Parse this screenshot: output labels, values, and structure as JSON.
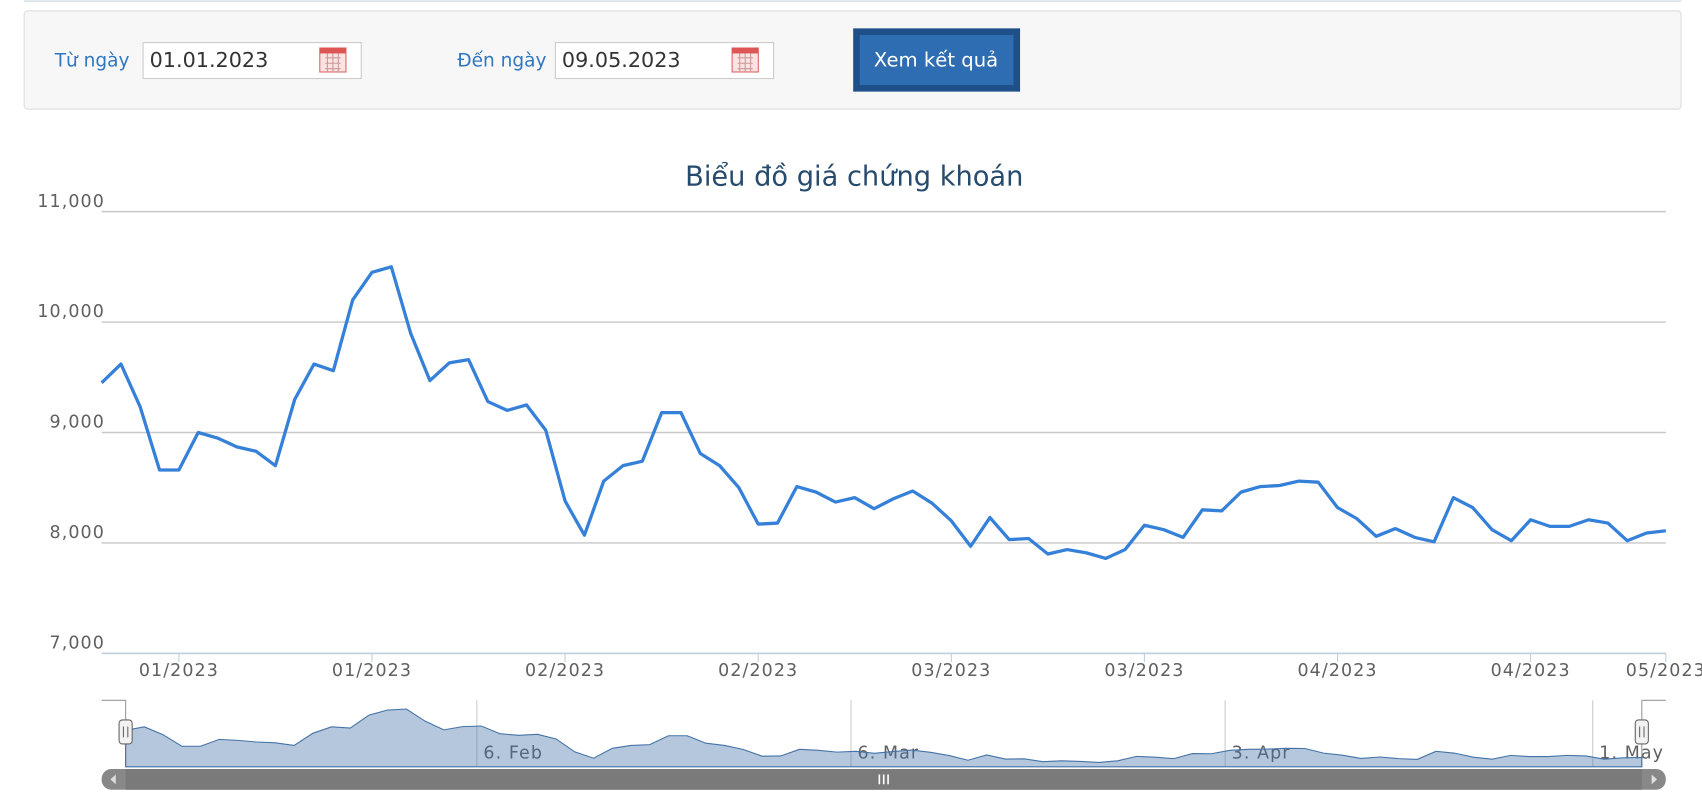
{
  "form": {
    "from_label": "Từ ngày",
    "from_value": "01.01.2023",
    "to_label": "Đến ngày",
    "to_value": "09.05.2023",
    "button": "Xem kết quả"
  },
  "chart_data": {
    "type": "line",
    "title": "Biểu đồ giá chứng khoán",
    "categories": [
      null,
      null,
      null,
      null,
      "01/2023",
      null,
      null,
      null,
      null,
      null,
      null,
      null,
      null,
      null,
      "01/2023",
      null,
      null,
      null,
      null,
      null,
      null,
      null,
      null,
      null,
      "02/2023",
      null,
      null,
      null,
      null,
      null,
      null,
      null,
      null,
      null,
      "02/2023",
      null,
      null,
      null,
      null,
      null,
      null,
      null,
      null,
      null,
      "03/2023",
      null,
      null,
      null,
      null,
      null,
      null,
      null,
      null,
      null,
      "03/2023",
      null,
      null,
      null,
      null,
      null,
      null,
      null,
      null,
      null,
      "04/2023",
      null,
      null,
      null,
      null,
      null,
      null,
      null,
      null,
      null,
      "04/2023",
      null,
      null,
      null,
      null,
      null,
      null,
      "05/2023"
    ],
    "series": [
      {
        "color": "#3580d8",
        "values": [
          9450,
          9620,
          9230,
          8660,
          8660,
          9000,
          8950,
          8870,
          8830,
          8700,
          9300,
          9620,
          9560,
          10200,
          10450,
          10500,
          9900,
          9470,
          9630,
          9660,
          9280,
          9200,
          9250,
          9020,
          8380,
          8070,
          8560,
          8700,
          8740,
          9180,
          9180,
          8810,
          8700,
          8500,
          8170,
          8180,
          8510,
          8460,
          8370,
          8410,
          8310,
          8400,
          8470,
          8360,
          8200,
          7970,
          8230,
          8030,
          8040,
          7900,
          7940,
          7910,
          7860,
          7940,
          8160,
          8120,
          8050,
          8300,
          8290,
          8460,
          8510,
          8520,
          8560,
          8550,
          8320,
          8220,
          8060,
          8130,
          8050,
          8010,
          8410,
          8320,
          8120,
          8020,
          8210,
          8150,
          8150,
          8210,
          8180,
          8020,
          8090,
          8110
        ]
      }
    ],
    "ylim": [
      7000,
      11000
    ],
    "yticks": [
      {
        "value": 7000,
        "label": "7,000"
      },
      {
        "value": 8000,
        "label": "8,000"
      },
      {
        "value": 9000,
        "label": "9,000"
      },
      {
        "value": 10000,
        "label": "10,000"
      },
      {
        "value": 11000,
        "label": "11,000"
      }
    ],
    "grid": true,
    "navigator_labels": [
      "6. Feb",
      "6. Mar",
      "3. Apr",
      "1. May"
    ]
  }
}
